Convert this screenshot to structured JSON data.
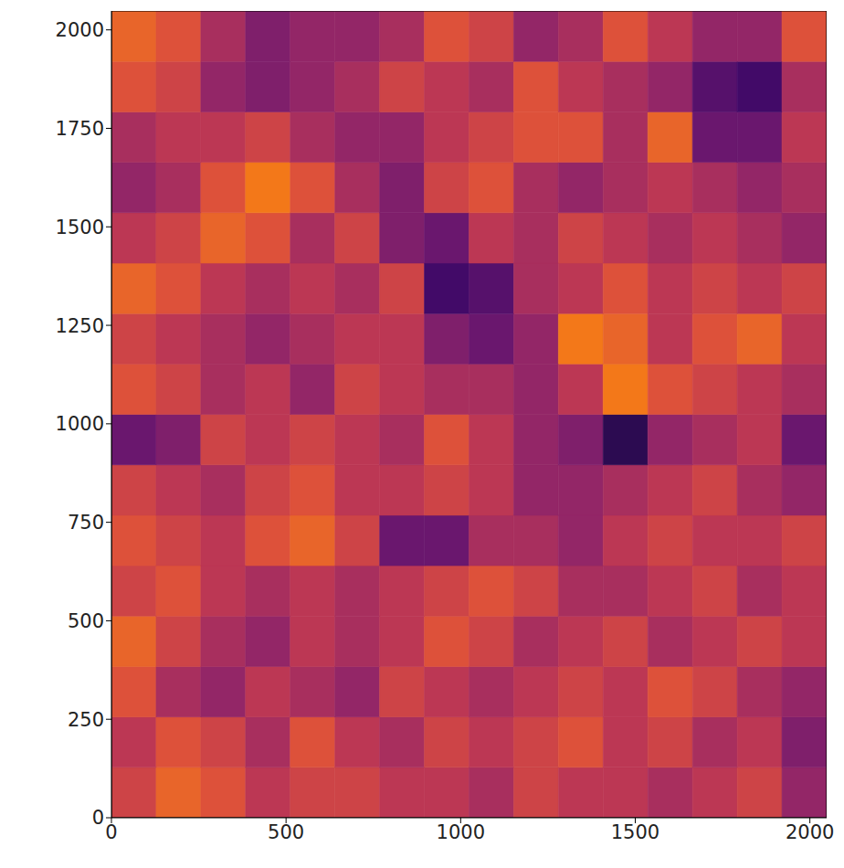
{
  "chart_data": {
    "type": "heatmap",
    "color": "inferno",
    "grid": false,
    "xlim": [
      0,
      2048
    ],
    "ylim": [
      0,
      2048
    ],
    "xticks": [
      0,
      500,
      1000,
      1500,
      2000
    ],
    "yticks": [
      0,
      250,
      500,
      750,
      1000,
      1250,
      1500,
      1750,
      2000
    ],
    "zlim": [
      0,
      1
    ],
    "cells": [
      [
        0.55,
        0.65,
        0.6,
        0.5,
        0.55,
        0.55,
        0.5,
        0.5,
        0.45,
        0.55,
        0.5,
        0.5,
        0.45,
        0.5,
        0.55,
        0.4
      ],
      [
        0.5,
        0.6,
        0.55,
        0.45,
        0.6,
        0.5,
        0.45,
        0.55,
        0.5,
        0.55,
        0.6,
        0.5,
        0.55,
        0.45,
        0.5,
        0.35
      ],
      [
        0.6,
        0.45,
        0.4,
        0.5,
        0.45,
        0.4,
        0.55,
        0.5,
        0.45,
        0.5,
        0.55,
        0.5,
        0.6,
        0.55,
        0.45,
        0.4
      ],
      [
        0.65,
        0.55,
        0.45,
        0.4,
        0.5,
        0.45,
        0.5,
        0.6,
        0.55,
        0.45,
        0.5,
        0.55,
        0.45,
        0.5,
        0.55,
        0.5
      ],
      [
        0.55,
        0.6,
        0.5,
        0.45,
        0.5,
        0.45,
        0.5,
        0.55,
        0.6,
        0.55,
        0.45,
        0.45,
        0.5,
        0.55,
        0.45,
        0.5
      ],
      [
        0.6,
        0.55,
        0.5,
        0.6,
        0.65,
        0.55,
        0.3,
        0.3,
        0.45,
        0.45,
        0.4,
        0.5,
        0.55,
        0.5,
        0.5,
        0.55
      ],
      [
        0.55,
        0.5,
        0.45,
        0.55,
        0.6,
        0.5,
        0.5,
        0.55,
        0.5,
        0.4,
        0.4,
        0.45,
        0.5,
        0.55,
        0.45,
        0.4
      ],
      [
        0.3,
        0.35,
        0.55,
        0.5,
        0.55,
        0.5,
        0.45,
        0.6,
        0.5,
        0.4,
        0.35,
        0.15,
        0.4,
        0.45,
        0.5,
        0.3
      ],
      [
        0.6,
        0.55,
        0.45,
        0.5,
        0.4,
        0.55,
        0.5,
        0.45,
        0.45,
        0.4,
        0.5,
        0.7,
        0.6,
        0.55,
        0.5,
        0.45
      ],
      [
        0.55,
        0.5,
        0.45,
        0.4,
        0.45,
        0.5,
        0.5,
        0.35,
        0.3,
        0.4,
        0.7,
        0.65,
        0.5,
        0.6,
        0.65,
        0.5
      ],
      [
        0.65,
        0.6,
        0.5,
        0.45,
        0.5,
        0.45,
        0.55,
        0.2,
        0.25,
        0.45,
        0.5,
        0.6,
        0.5,
        0.55,
        0.5,
        0.55
      ],
      [
        0.5,
        0.55,
        0.65,
        0.6,
        0.45,
        0.55,
        0.35,
        0.3,
        0.5,
        0.45,
        0.55,
        0.5,
        0.45,
        0.5,
        0.45,
        0.4
      ],
      [
        0.4,
        0.45,
        0.6,
        0.7,
        0.6,
        0.45,
        0.35,
        0.55,
        0.6,
        0.45,
        0.4,
        0.45,
        0.5,
        0.45,
        0.4,
        0.45
      ],
      [
        0.45,
        0.5,
        0.5,
        0.55,
        0.45,
        0.4,
        0.4,
        0.5,
        0.55,
        0.6,
        0.6,
        0.45,
        0.65,
        0.3,
        0.3,
        0.5
      ],
      [
        0.6,
        0.55,
        0.4,
        0.35,
        0.4,
        0.45,
        0.55,
        0.5,
        0.45,
        0.6,
        0.5,
        0.45,
        0.4,
        0.25,
        0.2,
        0.45
      ],
      [
        0.65,
        0.6,
        0.45,
        0.35,
        0.4,
        0.4,
        0.45,
        0.6,
        0.55,
        0.4,
        0.45,
        0.6,
        0.5,
        0.4,
        0.4,
        0.6
      ]
    ]
  }
}
